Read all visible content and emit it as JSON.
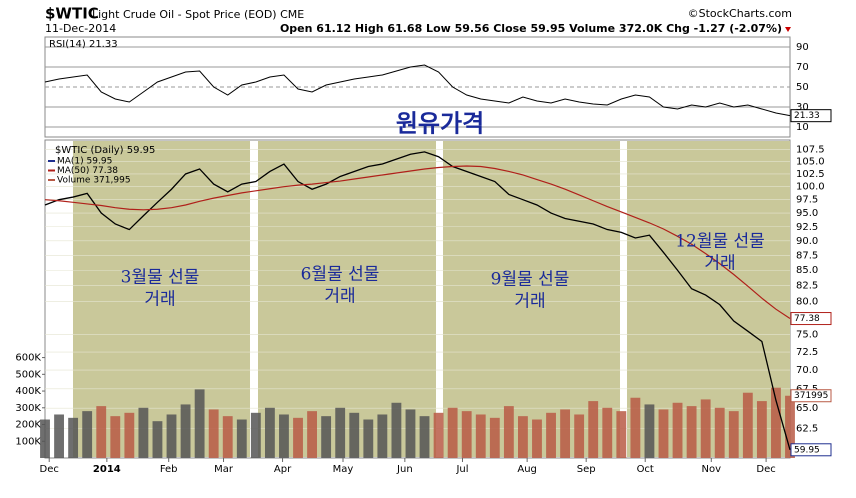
{
  "chart_data": {
    "type": "stock",
    "title": "$WTIC",
    "subtitle": "Light Crude Oil - Spot Price (EOD) CME",
    "source": "©StockCharts.com",
    "date": "11-Dec-2014",
    "quote": "Open 61.12  High 61.68  Low 59.56  Close 59.95  Volume 372.0K  Chg -1.27 (-2.07%)",
    "heading": "원유가격",
    "annotations": [
      [
        "3월물 선물",
        "거래"
      ],
      [
        "6월물 선물",
        "거래"
      ],
      [
        "9월물 선물",
        "거래"
      ],
      [
        "12월물 선물",
        "거래"
      ]
    ],
    "xlim": [
      0,
      53
    ],
    "xticks": [
      {
        "value": 0.3,
        "label": "Dec"
      },
      {
        "value": 4.4,
        "label": "2014"
      },
      {
        "value": 8.8,
        "label": "Feb"
      },
      {
        "value": 12.7,
        "label": "Mar"
      },
      {
        "value": 16.9,
        "label": "Apr"
      },
      {
        "value": 21.2,
        "label": "May"
      },
      {
        "value": 25.6,
        "label": "Jun"
      },
      {
        "value": 29.7,
        "label": "Jul"
      },
      {
        "value": 34.3,
        "label": "Aug"
      },
      {
        "value": 38.5,
        "label": "Sep"
      },
      {
        "value": 42.7,
        "label": "Oct"
      },
      {
        "value": 47.4,
        "label": "Nov"
      },
      {
        "value": 51.3,
        "label": "Dec"
      }
    ],
    "rsi": {
      "name": "RSI(14) 21.33",
      "color": "#000000",
      "last_label": "21.33",
      "ylim": [
        0,
        100
      ],
      "yticks": [
        10,
        30,
        50,
        70,
        90
      ],
      "values": [
        55,
        58,
        60,
        62,
        45,
        38,
        35,
        45,
        55,
        60,
        65,
        66,
        50,
        42,
        52,
        55,
        60,
        62,
        48,
        45,
        52,
        55,
        58,
        60,
        62,
        66,
        70,
        72,
        65,
        50,
        42,
        38,
        36,
        34,
        40,
        36,
        34,
        38,
        35,
        33,
        32,
        38,
        42,
        40,
        30,
        28,
        32,
        30,
        34,
        30,
        32,
        28,
        24,
        21.33
      ]
    },
    "ylim": [
      59,
      109.5
    ],
    "log_scale": true,
    "yticks": [
      {
        "value": 107.5,
        "label": "107.5"
      },
      {
        "value": 105,
        "label": "105.0"
      },
      {
        "value": 102.5,
        "label": "102.5"
      },
      {
        "value": 100,
        "label": "100.0"
      },
      {
        "value": 97.5,
        "label": "97.5"
      },
      {
        "value": 95,
        "label": "95.0"
      },
      {
        "value": 92.5,
        "label": "92.5"
      },
      {
        "value": 90,
        "label": "90.0"
      },
      {
        "value": 87.5,
        "label": "87.5"
      },
      {
        "value": 85,
        "label": "85.0"
      },
      {
        "value": 82.5,
        "label": "82.5"
      },
      {
        "value": 80,
        "label": "80.0"
      },
      {
        "value": 75,
        "label": "75.0"
      },
      {
        "value": 72.5,
        "label": "72.5"
      },
      {
        "value": 70,
        "label": "70.0"
      },
      {
        "value": 67.5,
        "label": "67.5"
      },
      {
        "value": 65,
        "label": "65.0"
      },
      {
        "value": 62.5,
        "label": "62.5"
      }
    ],
    "y2lim": [
      0,
      1900000
    ],
    "y2ticks": [
      {
        "value": 100000,
        "label": "100K"
      },
      {
        "value": 200000,
        "label": "200K"
      },
      {
        "value": 300000,
        "label": "300K"
      },
      {
        "value": 400000,
        "label": "400K"
      },
      {
        "value": 500000,
        "label": "500K"
      },
      {
        "value": 600000,
        "label": "600K"
      }
    ],
    "legend_title": "$WTIC (Daily) 59.95",
    "series": [
      {
        "name": "MA(1) 59.95",
        "color": "#1f2f8f",
        "last_label": "59.95",
        "values": [
          96.5,
          97.5,
          98.0,
          98.7,
          95.0,
          93.0,
          92.0,
          94.5,
          97.0,
          99.5,
          102.5,
          103.5,
          100.5,
          99.0,
          100.5,
          101.0,
          103.0,
          104.5,
          101.0,
          99.5,
          100.5,
          102.0,
          103.0,
          104.0,
          104.5,
          105.5,
          106.5,
          107.0,
          106.0,
          104.0,
          103.0,
          102.0,
          101.0,
          98.5,
          97.5,
          96.5,
          95.0,
          94.0,
          93.5,
          93.0,
          92.0,
          91.5,
          90.5,
          91.0,
          88.0,
          85.0,
          82.0,
          81.0,
          79.5,
          77.0,
          75.5,
          74.0,
          66.0,
          59.95
        ]
      },
      {
        "name": "MA(50) 77.38",
        "color": "#b0201a",
        "last_label": "77.38",
        "values": [
          97.5,
          97.3,
          97.0,
          96.7,
          96.4,
          96.0,
          95.7,
          95.6,
          95.7,
          96.0,
          96.5,
          97.2,
          97.8,
          98.3,
          98.8,
          99.2,
          99.6,
          100.0,
          100.3,
          100.5,
          100.8,
          101.1,
          101.5,
          101.9,
          102.3,
          102.7,
          103.1,
          103.5,
          103.8,
          104.0,
          104.1,
          104.0,
          103.6,
          103.0,
          102.3,
          101.4,
          100.5,
          99.5,
          98.4,
          97.3,
          96.2,
          95.2,
          94.2,
          93.2,
          92.1,
          90.8,
          89.4,
          87.8,
          86.1,
          84.3,
          82.4,
          80.5,
          78.8,
          77.38
        ]
      },
      {
        "name": "Volume 371,995",
        "color": "#b85a45",
        "axis": "y2",
        "last_label": "371995",
        "values": [
          230000,
          260000,
          240000,
          280000,
          310000,
          250000,
          270000,
          300000,
          220000,
          260000,
          320000,
          410000,
          290000,
          250000,
          230000,
          270000,
          300000,
          260000,
          240000,
          280000,
          250000,
          300000,
          270000,
          230000,
          260000,
          330000,
          290000,
          250000,
          270000,
          300000,
          280000,
          260000,
          240000,
          310000,
          250000,
          230000,
          270000,
          290000,
          260000,
          340000,
          300000,
          280000,
          360000,
          320000,
          290000,
          330000,
          310000,
          350000,
          300000,
          280000,
          390000,
          340000,
          420000,
          371995
        ]
      }
    ]
  }
}
